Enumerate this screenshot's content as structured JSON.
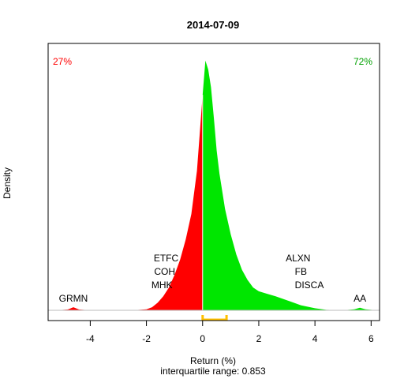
{
  "chart_data": {
    "type": "area",
    "title": "2014-07-09",
    "xlabel": "Return (%)",
    "subtitle": "interquartile range: 0.853",
    "ylabel": "Density",
    "xlim": [
      -5.5,
      6.3
    ],
    "ylim": [
      0,
      1.0
    ],
    "x_ticks": [
      "-4",
      "-2",
      "0",
      "2",
      "4",
      "6"
    ],
    "x_tick_values": [
      -4,
      -2,
      0,
      2,
      4,
      6
    ],
    "negative_share": "27%",
    "positive_share": "72%",
    "interquartile_range": {
      "low": 0.0,
      "high": 0.853
    },
    "density": {
      "x": [
        -5.2,
        -4.8,
        -4.6,
        -4.4,
        -4.0,
        -3.0,
        -2.4,
        -2.0,
        -1.8,
        -1.6,
        -1.4,
        -1.2,
        -1.0,
        -0.8,
        -0.6,
        -0.4,
        -0.2,
        -0.1,
        0.0,
        0.1,
        0.2,
        0.3,
        0.4,
        0.5,
        0.6,
        0.8,
        1.0,
        1.2,
        1.4,
        1.6,
        1.8,
        2.0,
        2.3,
        2.6,
        3.0,
        3.5,
        4.0,
        4.4,
        5.0,
        5.4,
        5.6,
        5.8,
        6.2
      ],
      "y": [
        0.0,
        0.003,
        0.012,
        0.003,
        0.0,
        0.0,
        0.001,
        0.004,
        0.012,
        0.03,
        0.055,
        0.09,
        0.14,
        0.2,
        0.28,
        0.38,
        0.55,
        0.7,
        0.85,
        0.985,
        0.95,
        0.88,
        0.76,
        0.63,
        0.54,
        0.4,
        0.3,
        0.22,
        0.16,
        0.12,
        0.09,
        0.075,
        0.065,
        0.055,
        0.04,
        0.02,
        0.008,
        0.002,
        0.0,
        0.004,
        0.01,
        0.004,
        0.0
      ]
    },
    "annotations": [
      {
        "text": "GRMN",
        "x": -4.6,
        "row": 0
      },
      {
        "text": "ETFC",
        "x": -1.3,
        "row": 3
      },
      {
        "text": "COH",
        "x": -1.35,
        "row": 2
      },
      {
        "text": "MHK",
        "x": -1.45,
        "row": 1
      },
      {
        "text": "ALXN",
        "x": 3.4,
        "row": 3
      },
      {
        "text": "FB",
        "x": 3.5,
        "row": 2
      },
      {
        "text": "DISCA",
        "x": 3.8,
        "row": 1
      },
      {
        "text": "AA",
        "x": 5.6,
        "row": 0
      }
    ],
    "colors": {
      "negative": "#ff0000",
      "positive": "#00e600",
      "iqr": "#ffc000",
      "text": "#000000",
      "negative_text": "#ff0000",
      "positive_text": "#00a000"
    }
  }
}
